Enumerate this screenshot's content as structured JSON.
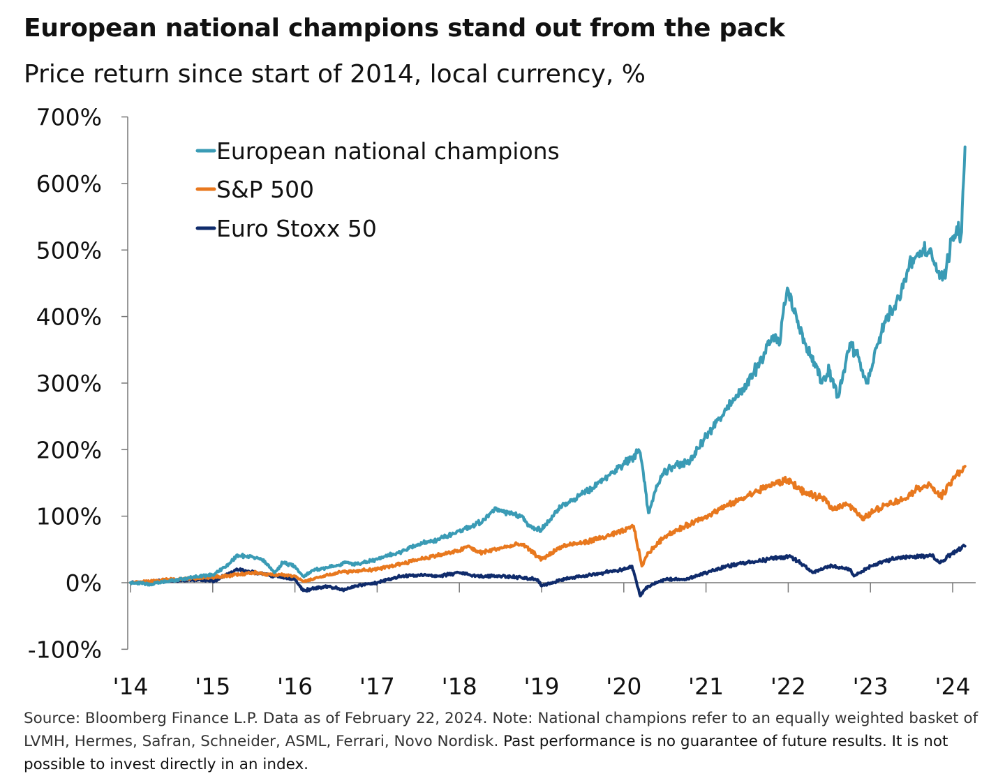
{
  "title": "European national champions stand out from the pack",
  "subtitle": "Price return since start of 2014, local currency, %",
  "footnote": {
    "source": "Source: Bloomberg Finance L.P. Data as of February 22, 2024. Note: National champions refer to an equally weighted basket of LVMH, Hermes, Safran, Schneider, ASML, Ferrari, Novo Nordisk.",
    "disclaimer": " Past performance is no guarantee of future results. It is not possible to invest directly in an index."
  },
  "chart_data": {
    "type": "line",
    "title": "European national champions stand out from the pack",
    "subtitle": "Price return since start of 2014, local currency, %",
    "xlabel": "",
    "ylabel": "",
    "ylim": [
      -100,
      700
    ],
    "xlim": [
      2014.0,
      2024.25
    ],
    "y_ticks": [
      -100,
      0,
      100,
      200,
      300,
      400,
      500,
      600,
      700
    ],
    "y_tick_labels": [
      "-100%",
      "0%",
      "100%",
      "200%",
      "300%",
      "400%",
      "500%",
      "600%",
      "700%"
    ],
    "x_ticks": [
      2014,
      2015,
      2016,
      2017,
      2018,
      2019,
      2020,
      2021,
      2022,
      2023,
      2024
    ],
    "x_tick_labels": [
      "'14",
      "'15",
      "'16",
      "'17",
      "'18",
      "'19",
      "'20",
      "'21",
      "'22",
      "'23",
      "'24"
    ],
    "legend_position": "top-left",
    "grid": false,
    "series": [
      {
        "name": "European national champions",
        "color": "#3a9bb5",
        "x": [
          2014.0,
          2014.25,
          2014.5,
          2014.75,
          2015.0,
          2015.2,
          2015.3,
          2015.5,
          2015.6,
          2015.75,
          2015.85,
          2016.0,
          2016.1,
          2016.25,
          2016.5,
          2016.6,
          2016.75,
          2017.0,
          2017.25,
          2017.5,
          2017.75,
          2018.0,
          2018.15,
          2018.3,
          2018.45,
          2018.55,
          2018.75,
          2018.85,
          2019.0,
          2019.2,
          2019.45,
          2019.6,
          2019.8,
          2020.0,
          2020.12,
          2020.18,
          2020.22,
          2020.3,
          2020.45,
          2020.6,
          2020.75,
          2020.85,
          2021.0,
          2021.25,
          2021.5,
          2021.65,
          2021.8,
          2021.9,
          2021.95,
          2022.0,
          2022.1,
          2022.2,
          2022.3,
          2022.4,
          2022.5,
          2022.6,
          2022.65,
          2022.75,
          2022.85,
          2022.95,
          2023.0,
          2023.1,
          2023.2,
          2023.35,
          2023.45,
          2023.55,
          2023.65,
          2023.75,
          2023.85,
          2023.92,
          2024.0,
          2024.05,
          2024.1,
          2024.15
        ],
        "values": [
          0,
          -2,
          3,
          8,
          12,
          28,
          42,
          38,
          35,
          15,
          30,
          25,
          10,
          20,
          25,
          30,
          28,
          35,
          45,
          58,
          65,
          78,
          85,
          95,
          112,
          105,
          100,
          85,
          80,
          110,
          130,
          140,
          160,
          178,
          190,
          200,
          180,
          105,
          160,
          175,
          180,
          190,
          220,
          260,
          300,
          330,
          370,
          360,
          420,
          440,
          400,
          360,
          340,
          300,
          320,
          280,
          300,
          360,
          340,
          300,
          320,
          360,
          400,
          430,
          470,
          490,
          500,
          490,
          460,
          470,
          520,
          535,
          520,
          655
        ]
      },
      {
        "name": "S&P 500",
        "color": "#e8781e",
        "x": [
          2014.0,
          2014.5,
          2015.0,
          2015.5,
          2015.75,
          2016.0,
          2016.1,
          2016.5,
          2016.75,
          2017.0,
          2017.5,
          2018.0,
          2018.1,
          2018.25,
          2018.5,
          2018.75,
          2018.85,
          2019.0,
          2019.25,
          2019.5,
          2019.75,
          2020.0,
          2020.12,
          2020.22,
          2020.3,
          2020.5,
          2020.75,
          2021.0,
          2021.25,
          2021.5,
          2021.75,
          2022.0,
          2022.2,
          2022.45,
          2022.55,
          2022.7,
          2022.8,
          2022.9,
          2023.0,
          2023.2,
          2023.4,
          2023.55,
          2023.7,
          2023.85,
          2023.9,
          2024.0,
          2024.15
        ],
        "values": [
          0,
          5,
          8,
          15,
          12,
          10,
          2,
          15,
          18,
          20,
          35,
          48,
          55,
          45,
          52,
          58,
          50,
          35,
          55,
          60,
          68,
          78,
          85,
          25,
          45,
          70,
          85,
          100,
          115,
          130,
          145,
          155,
          135,
          125,
          110,
          120,
          110,
          95,
          105,
          118,
          125,
          140,
          148,
          130,
          135,
          155,
          175
        ]
      },
      {
        "name": "Euro Stoxx 50",
        "color": "#0f2b6b",
        "x": [
          2014.0,
          2014.5,
          2014.85,
          2015.0,
          2015.3,
          2015.5,
          2015.75,
          2016.0,
          2016.1,
          2016.4,
          2016.6,
          2016.75,
          2017.0,
          2017.3,
          2017.5,
          2017.75,
          2018.0,
          2018.2,
          2018.5,
          2018.75,
          2018.95,
          2019.0,
          2019.25,
          2019.5,
          2019.75,
          2020.0,
          2020.1,
          2020.2,
          2020.3,
          2020.5,
          2020.75,
          2021.0,
          2021.25,
          2021.5,
          2021.75,
          2022.0,
          2022.15,
          2022.3,
          2022.5,
          2022.75,
          2022.8,
          2023.0,
          2023.25,
          2023.5,
          2023.75,
          2023.85,
          2024.0,
          2024.15
        ],
        "values": [
          0,
          3,
          5,
          2,
          20,
          15,
          10,
          5,
          -12,
          -5,
          -10,
          -5,
          0,
          10,
          12,
          10,
          15,
          10,
          10,
          8,
          5,
          -5,
          5,
          10,
          15,
          20,
          25,
          -20,
          -5,
          5,
          5,
          15,
          25,
          30,
          35,
          40,
          30,
          15,
          25,
          20,
          10,
          25,
          35,
          40,
          40,
          30,
          45,
          55
        ]
      }
    ]
  }
}
